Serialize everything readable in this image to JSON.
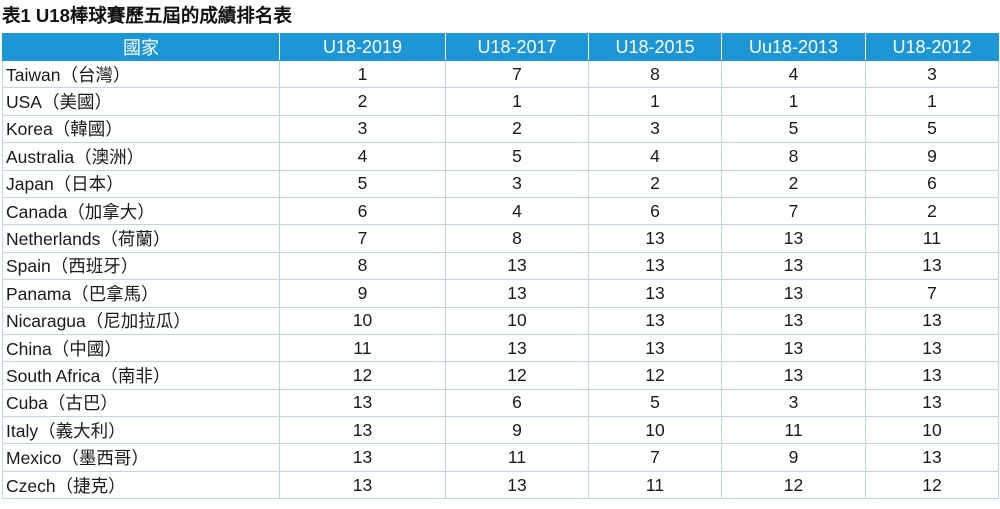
{
  "title": "表1  U18棒球賽歷五屆的成績排名表",
  "header": {
    "country": "國家",
    "years": [
      "U18-2019",
      "U18-2017",
      "U18-2015",
      "Uu18-2013",
      "U18-2012"
    ]
  },
  "rows": [
    {
      "country": "Taiwan（台灣）",
      "ranks": [
        "1",
        "7",
        "8",
        "4",
        "3"
      ]
    },
    {
      "country": "USA（美國）",
      "ranks": [
        "2",
        "1",
        "1",
        "1",
        "1"
      ]
    },
    {
      "country": "Korea（韓國）",
      "ranks": [
        "3",
        "2",
        "3",
        "5",
        "5"
      ]
    },
    {
      "country": "Australia（澳洲）",
      "ranks": [
        "4",
        "5",
        "4",
        "8",
        "9"
      ]
    },
    {
      "country": "Japan（日本）",
      "ranks": [
        "5",
        "3",
        "2",
        "2",
        "6"
      ]
    },
    {
      "country": "Canada（加拿大）",
      "ranks": [
        "6",
        "4",
        "6",
        "7",
        "2"
      ]
    },
    {
      "country": "Netherlands（荷蘭）",
      "ranks": [
        "7",
        "8",
        "13",
        "13",
        "11"
      ]
    },
    {
      "country": "Spain（西班牙）",
      "ranks": [
        "8",
        "13",
        "13",
        "13",
        "13"
      ]
    },
    {
      "country": "Panama（巴拿馬）",
      "ranks": [
        "9",
        "13",
        "13",
        "13",
        "7"
      ]
    },
    {
      "country": "Nicaragua（尼加拉瓜）",
      "ranks": [
        "10",
        "10",
        "13",
        "13",
        "13"
      ]
    },
    {
      "country": "China（中國）",
      "ranks": [
        "11",
        "13",
        "13",
        "13",
        "13"
      ]
    },
    {
      "country": "South Africa（南非）",
      "ranks": [
        "12",
        "12",
        "12",
        "13",
        "13"
      ]
    },
    {
      "country": "Cuba（古巴）",
      "ranks": [
        "13",
        "6",
        "5",
        "3",
        "13"
      ]
    },
    {
      "country": "Italy（義大利）",
      "ranks": [
        "13",
        "9",
        "10",
        "11",
        "10"
      ]
    },
    {
      "country": "Mexico（墨西哥）",
      "ranks": [
        "13",
        "11",
        "7",
        "9",
        "13"
      ]
    },
    {
      "country": "Czech（捷克）",
      "ranks": [
        "13",
        "13",
        "11",
        "12",
        "12"
      ]
    }
  ],
  "colors": {
    "header_bg": "#1d96d6",
    "header_text": "#ffffff",
    "grid_line": "#b9d6ec"
  }
}
